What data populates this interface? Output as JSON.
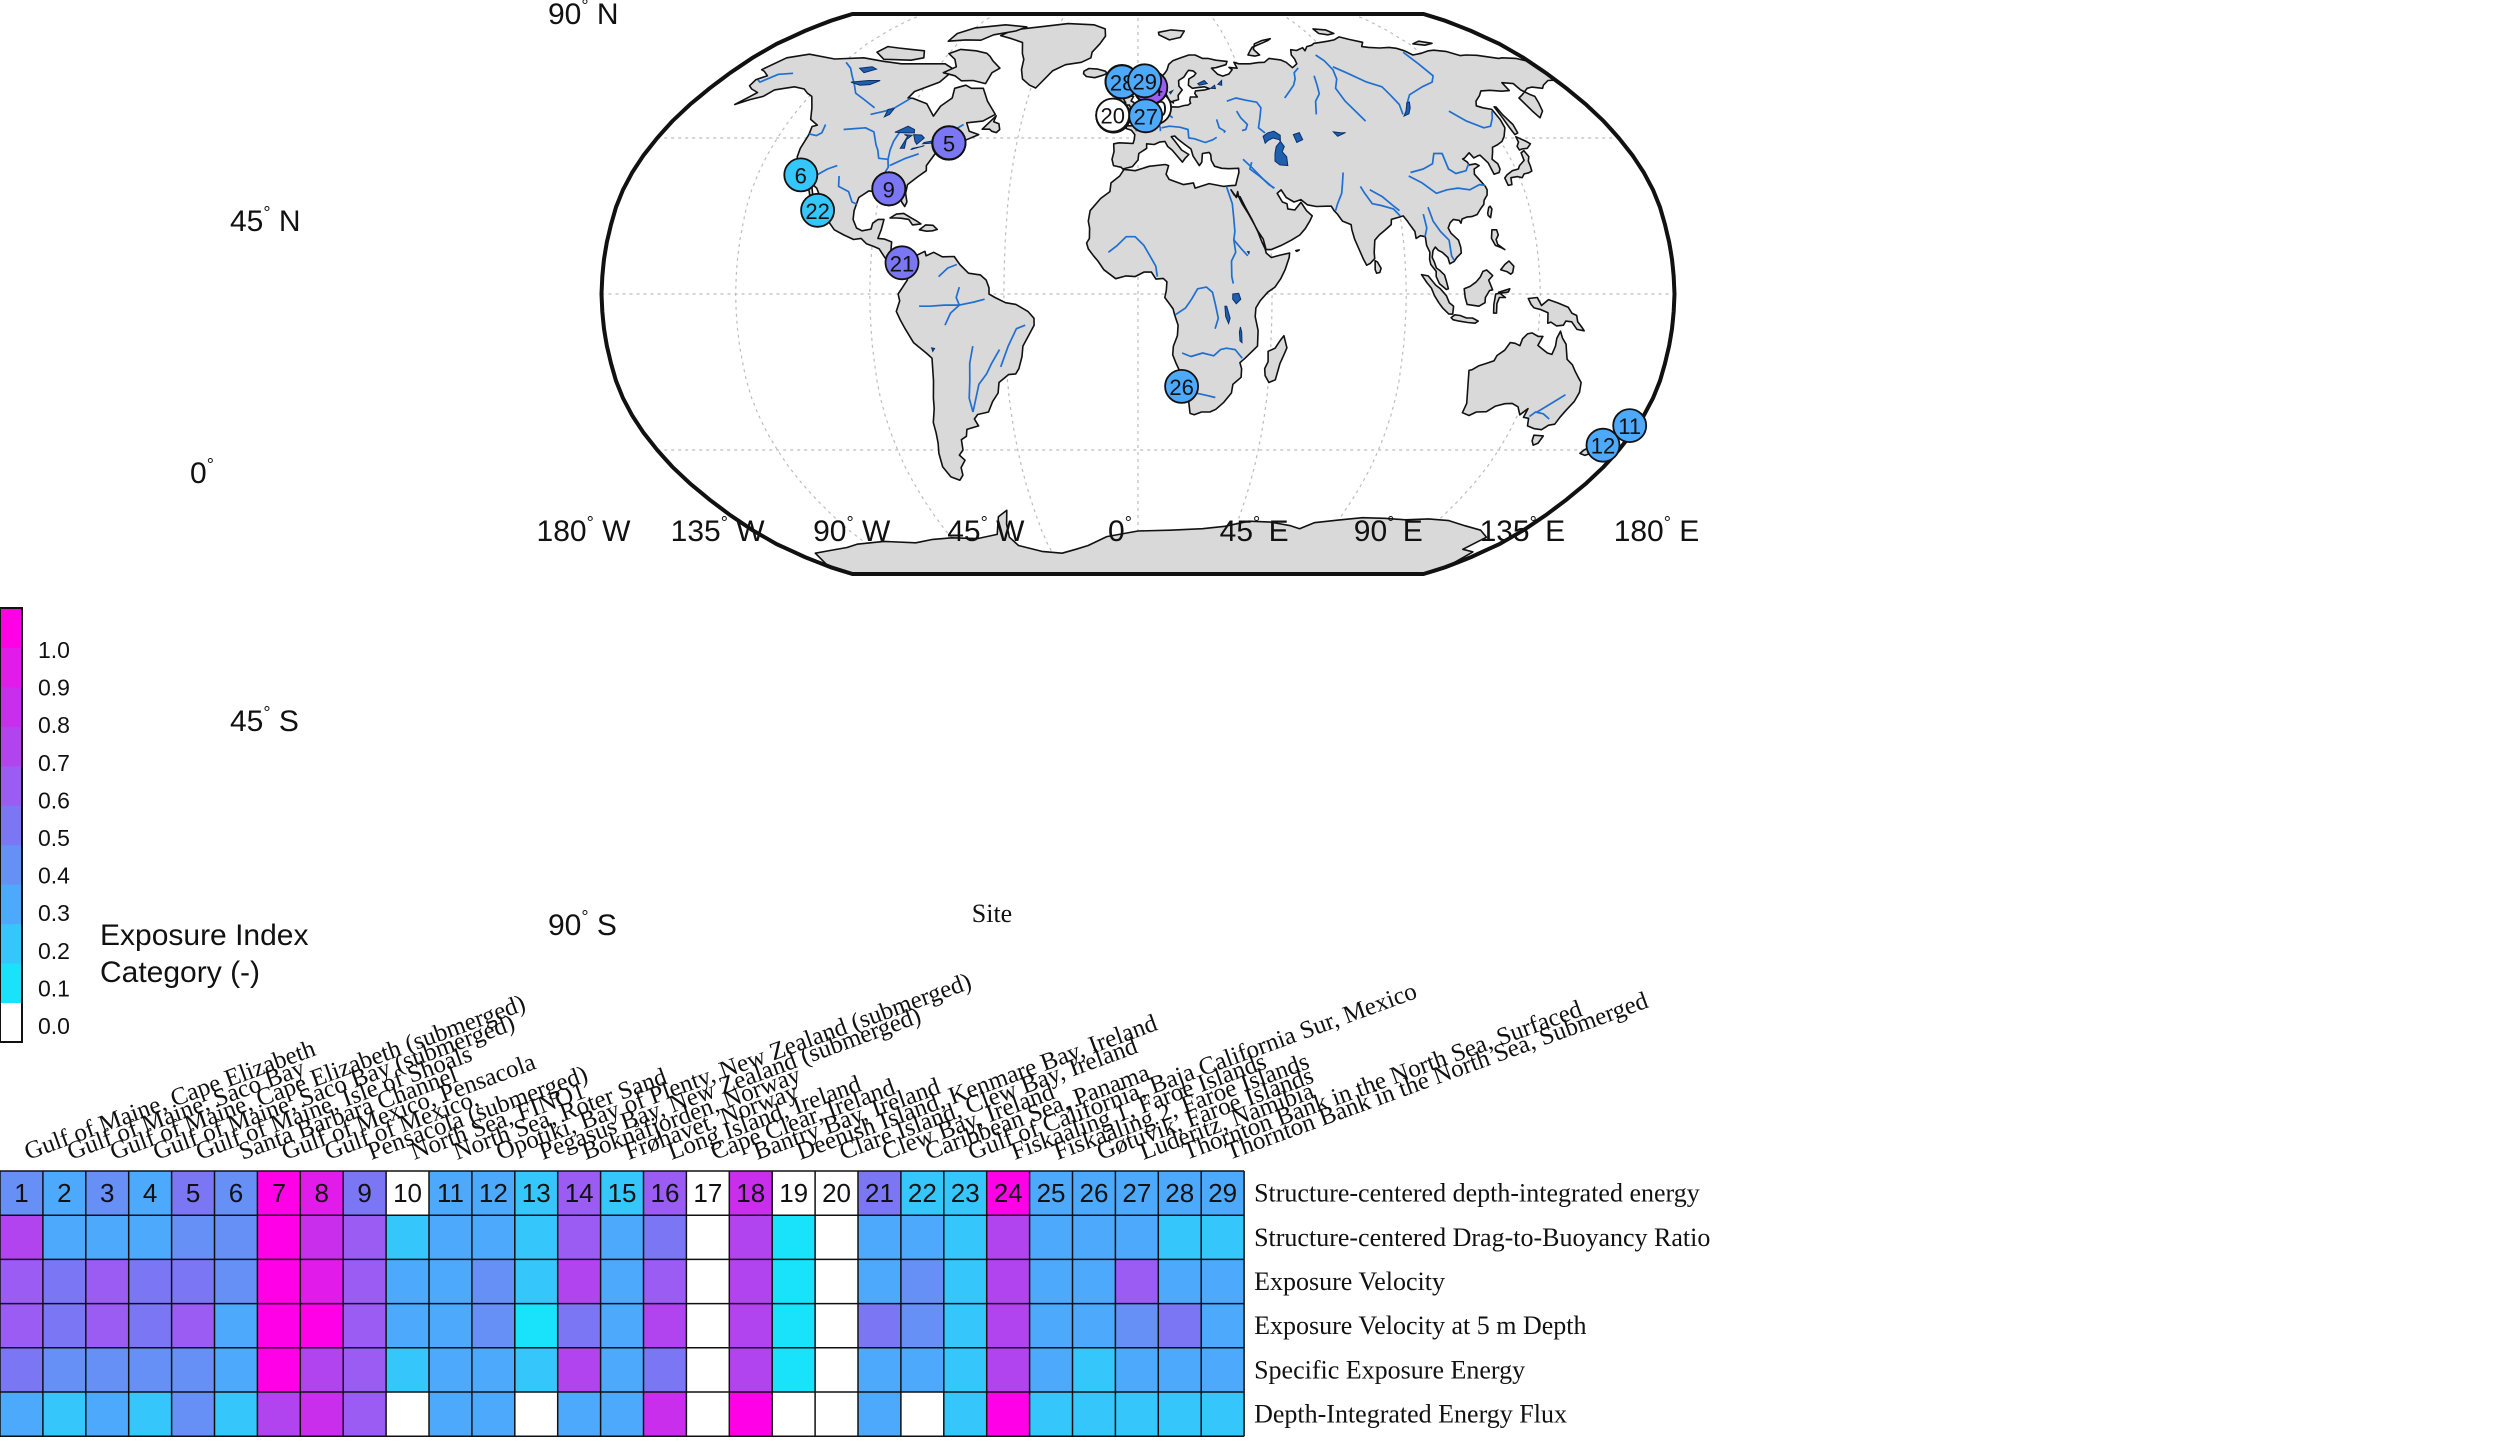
{
  "map": {
    "lat_labels": [
      {
        "text": "90",
        "hemi": "N",
        "lat": 90
      },
      {
        "text": "45",
        "hemi": "N",
        "lat": 45
      },
      {
        "text": "0",
        "hemi": "",
        "lat": 0
      },
      {
        "text": "45",
        "hemi": "S",
        "lat": -45
      },
      {
        "text": "90",
        "hemi": "S",
        "lat": -90
      }
    ],
    "lon_labels": [
      {
        "text": "180",
        "hemi": "W",
        "lon": -180
      },
      {
        "text": "135",
        "hemi": "W",
        "lon": -135
      },
      {
        "text": "90",
        "hemi": "W",
        "lon": -90
      },
      {
        "text": "45",
        "hemi": "W",
        "lon": -45
      },
      {
        "text": "0",
        "hemi": "",
        "lon": 0
      },
      {
        "text": "45",
        "hemi": "E",
        "lon": 45
      },
      {
        "text": "90",
        "hemi": "E",
        "lon": 90
      },
      {
        "text": "135",
        "hemi": "E",
        "lon": 135
      },
      {
        "text": "180",
        "hemi": "E",
        "lon": 180
      }
    ],
    "site_word": "Site",
    "colors": {
      "land": "#d9d9d9",
      "coast": "#111111",
      "river": "#1f6fd1",
      "lake": "#1f5fae",
      "grid": "#bdbdbd",
      "frame": "#111111"
    },
    "markers": [
      {
        "id": "1",
        "lon": -70.2,
        "lat": 43.6,
        "index": 0.5
      },
      {
        "id": "2",
        "lon": -70.3,
        "lat": 43.5,
        "index": 0.4
      },
      {
        "id": "3",
        "lon": -70.2,
        "lat": 43.6,
        "index": 0.5
      },
      {
        "id": "4",
        "lon": -70.2,
        "lat": 43.5,
        "index": 0.4
      },
      {
        "id": "5",
        "lon": -70.2,
        "lat": 43.6,
        "index": 0.5
      },
      {
        "id": "6",
        "lon": -119.7,
        "lat": 34.3,
        "index": 0.2
      },
      {
        "id": "7",
        "lon": -87.2,
        "lat": 30.3,
        "index": 1.0
      },
      {
        "id": "8",
        "lon": -87.2,
        "lat": 30.3,
        "index": 0.9
      },
      {
        "id": "9",
        "lon": -87.2,
        "lat": 30.3,
        "index": 0.5
      },
      {
        "id": "10",
        "lon": 6.6,
        "lat": 54.0,
        "index": 0.0
      },
      {
        "id": "11",
        "lon": 177.3,
        "lat": -37.9,
        "index": 0.3
      },
      {
        "id": "12",
        "lon": 172.7,
        "lat": -43.6,
        "index": 0.3
      },
      {
        "id": "13",
        "lon": 5.3,
        "lat": 60.2,
        "index": 0.2
      },
      {
        "id": "14",
        "lon": 5.4,
        "lat": 60.3,
        "index": 0.6
      },
      {
        "id": "15",
        "lon": -9.9,
        "lat": 51.6,
        "index": 0.2
      },
      {
        "id": "16",
        "lon": -9.5,
        "lat": 51.5,
        "index": 0.6
      },
      {
        "id": "17",
        "lon": -9.9,
        "lat": 51.7,
        "index": 0.0
      },
      {
        "id": "18",
        "lon": -9.7,
        "lat": 51.6,
        "index": 0.8
      },
      {
        "id": "19",
        "lon": -9.8,
        "lat": 51.8,
        "index": 0.1
      },
      {
        "id": "20",
        "lon": -9.9,
        "lat": 51.8,
        "index": 0.0
      },
      {
        "id": "21",
        "lon": -79.5,
        "lat": 9.0,
        "index": 0.5
      },
      {
        "id": "22",
        "lon": -110.3,
        "lat": 24.1,
        "index": 0.2
      },
      {
        "id": "23",
        "lon": -6.8,
        "lat": 62.1,
        "index": 0.2
      },
      {
        "id": "24",
        "lon": -6.8,
        "lat": 62.0,
        "index": 1.0
      },
      {
        "id": "25",
        "lon": -6.9,
        "lat": 62.2,
        "index": 0.3
      },
      {
        "id": "26",
        "lon": 15.1,
        "lat": -26.6,
        "index": 0.3
      },
      {
        "id": "27",
        "lon": 3.0,
        "lat": 51.6,
        "index": 0.3
      },
      {
        "id": "28",
        "lon": -6.8,
        "lat": 62.1,
        "index": 0.3
      },
      {
        "id": "29",
        "lon": 2.9,
        "lat": 62.4,
        "index": 0.3
      }
    ]
  },
  "colorbar": {
    "ticks": [
      "0.0",
      "0.1",
      "0.2",
      "0.3",
      "0.4",
      "0.5",
      "0.6",
      "0.7",
      "0.8",
      "0.9",
      "1.0"
    ],
    "title_line1": "Exposure Index",
    "title_line2": "Category (-)",
    "colors": [
      "#ffffff",
      "#19e3fa",
      "#35c7fb",
      "#4da9fb",
      "#6690f6",
      "#7b76f4",
      "#9a5cf2",
      "#b244ef",
      "#c92eed",
      "#e11cea",
      "#ff00e7"
    ]
  },
  "sites": [
    "Gulf of Maine, Cape Elizabeth",
    "Gulf of Maine, Saco Bay",
    "Gulf of Maine, Cape Elizabeth (submerged)",
    "Gulf of Maine, Saco Bay (submerged)",
    "Gulf of Maine, Isle of Shoals",
    "Santa Barbara Channel",
    "Gulf of Mexico, Pensacola",
    "Gulf of Mexico,",
    "Pensacola (submerged)",
    "North Sea, FINO1",
    "North Sea, Roter Sand",
    "Opotiki, Bay of Plenty, New Zealand (submerged)",
    "Pegasus Bay, New Zealand (submerged)",
    "Boknåfjorden, Norway",
    "Frøhavet, Norway",
    "Long Island, Ireland",
    "Cape Clear, Ireland",
    "Bantry Bay, Ireland",
    "Deenish Island, Kenmare Bay, Ireland",
    "Clare Island, Clew Bay, Ireland",
    "Clew Bay, Ireland",
    "Caribbean Sea, Panama",
    "Gulf of California, Baja California Sur, Mexico",
    "Fiskaaling 1, Faroe Islands",
    "Fiskaaling 2, Faroe Islands",
    "Gøtuvik, Faroe Islands",
    "Luderitz, Namibia",
    "Thornton Bank in the North Sea, Surfaced",
    "Thornton Bank in the North Sea, Submerged"
  ],
  "table": {
    "columns": [
      "1",
      "2",
      "3",
      "4",
      "5",
      "6",
      "7",
      "8",
      "9",
      "10",
      "11",
      "12",
      "13",
      "14",
      "15",
      "16",
      "17",
      "18",
      "19",
      "20",
      "21",
      "22",
      "23",
      "24",
      "25",
      "26",
      "27",
      "28",
      "29"
    ],
    "rows": [
      {
        "label": "Structure-centered depth-integrated energy",
        "values": [
          0.4,
          0.3,
          0.4,
          0.3,
          0.5,
          0.4,
          1.0,
          0.9,
          0.5,
          0.0,
          0.3,
          0.3,
          0.2,
          0.6,
          0.2,
          0.6,
          0.0,
          0.8,
          0.0,
          0.0,
          0.5,
          0.2,
          0.2,
          1.0,
          0.3,
          0.3,
          0.3,
          0.3,
          0.3
        ]
      },
      {
        "label": "Structure-centered Drag-to-Buoyancy Ratio",
        "values": [
          0.7,
          0.3,
          0.3,
          0.3,
          0.4,
          0.4,
          1.0,
          0.8,
          0.6,
          0.2,
          0.3,
          0.3,
          0.2,
          0.6,
          0.3,
          0.5,
          0.0,
          0.7,
          0.1,
          0.0,
          0.3,
          0.3,
          0.2,
          0.7,
          0.3,
          0.3,
          0.3,
          0.2,
          0.2
        ]
      },
      {
        "label": "Exposure Velocity",
        "values": [
          0.6,
          0.5,
          0.6,
          0.5,
          0.5,
          0.4,
          1.0,
          0.9,
          0.6,
          0.3,
          0.3,
          0.4,
          0.2,
          0.7,
          0.3,
          0.6,
          0.0,
          0.7,
          0.1,
          0.0,
          0.3,
          0.4,
          0.2,
          0.7,
          0.3,
          0.3,
          0.6,
          0.3,
          0.3
        ]
      },
      {
        "label": "Exposure Velocity at 5 m Depth",
        "values": [
          0.6,
          0.5,
          0.6,
          0.5,
          0.6,
          0.3,
          1.0,
          1.0,
          0.6,
          0.3,
          0.3,
          0.4,
          0.1,
          0.5,
          0.3,
          0.7,
          0.0,
          0.7,
          0.1,
          0.0,
          0.5,
          0.4,
          0.2,
          0.7,
          0.3,
          0.3,
          0.4,
          0.5,
          0.3
        ]
      },
      {
        "label": "Specific Exposure Energy",
        "values": [
          0.5,
          0.4,
          0.4,
          0.4,
          0.4,
          0.3,
          1.0,
          0.7,
          0.6,
          0.2,
          0.3,
          0.3,
          0.2,
          0.7,
          0.3,
          0.5,
          0.0,
          0.7,
          0.1,
          0.0,
          0.3,
          0.3,
          0.2,
          0.7,
          0.3,
          0.2,
          0.3,
          0.3,
          0.3
        ]
      },
      {
        "label": "Depth-Integrated Energy Flux",
        "values": [
          0.3,
          0.2,
          0.3,
          0.2,
          0.4,
          0.2,
          0.7,
          0.8,
          0.6,
          0.0,
          0.3,
          0.3,
          0.0,
          0.3,
          0.3,
          0.8,
          0.0,
          1.0,
          0.0,
          0.0,
          0.3,
          0.0,
          0.2,
          1.0,
          0.2,
          0.2,
          0.2,
          0.2,
          0.2
        ]
      }
    ]
  }
}
